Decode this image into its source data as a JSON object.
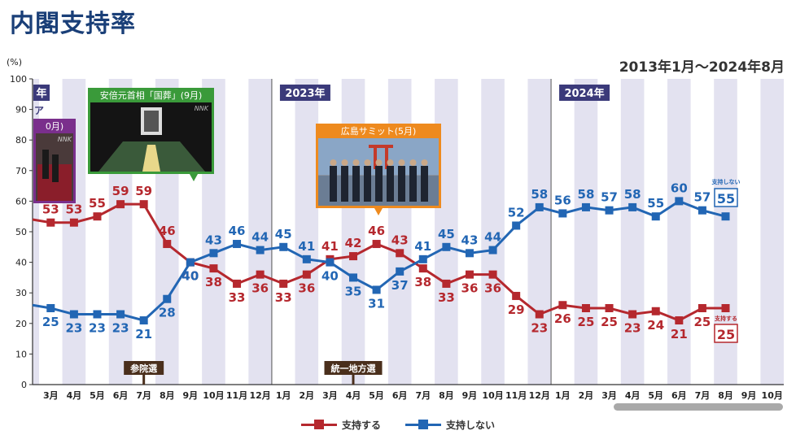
{
  "header": {
    "title": "内閣支持率",
    "range": "2013年1月〜2024年8月"
  },
  "chart_data": {
    "type": "line",
    "ylabel": "(%)",
    "ylim": [
      0,
      100
    ],
    "yticks": [
      0,
      10,
      20,
      30,
      40,
      50,
      60,
      70,
      80,
      90,
      100
    ],
    "categories": [
      "3月",
      "4月",
      "5月",
      "6月",
      "7月",
      "8月",
      "9月",
      "10月",
      "11月",
      "12月",
      "1月",
      "2月",
      "3月",
      "4月",
      "5月",
      "6月",
      "7月",
      "8月",
      "9月",
      "10月",
      "11月",
      "12月",
      "1月",
      "2月",
      "3月",
      "4月",
      "5月",
      "6月",
      "7月",
      "8月",
      "9月",
      "10月"
    ],
    "grid": "alternating month bands",
    "series": [
      {
        "name": "支持する",
        "color": "#b5282e",
        "values": [
          53,
          53,
          55,
          59,
          59,
          46,
          40,
          38,
          33,
          36,
          33,
          36,
          41,
          42,
          46,
          43,
          38,
          33,
          36,
          36,
          29,
          23,
          26,
          25,
          25,
          23,
          24,
          21,
          25,
          25,
          null,
          null
        ]
      },
      {
        "name": "支持しない",
        "color": "#2266b4",
        "values": [
          25,
          23,
          23,
          23,
          21,
          28,
          40,
          43,
          46,
          44,
          45,
          41,
          40,
          35,
          31,
          37,
          41,
          45,
          43,
          44,
          52,
          58,
          56,
          58,
          57,
          58,
          55,
          60,
          57,
          55,
          null,
          null
        ]
      }
    ],
    "series_edge": {
      "support_start": 54,
      "nonsupport_start": 26
    },
    "year_labels": [
      {
        "text": "年",
        "col": -1
      },
      {
        "text": "2023年",
        "col": 10
      },
      {
        "text": "2024年",
        "col": 22
      }
    ],
    "events": [
      {
        "text": "参院選",
        "col": 4
      },
      {
        "text": "統一地方選",
        "col": 13
      }
    ],
    "callouts": [
      {
        "text": "安倍元首相「国葬」(9月)",
        "border": "#3a9a3a",
        "watermark": "NNK"
      },
      {
        "text": "広島サミット(5月)",
        "border": "#ee8a1e"
      },
      {
        "text": "0月)",
        "border": "#7a2f8c",
        "watermark": "NNK"
      }
    ],
    "partial_label": "ア",
    "end_labels": [
      {
        "text": "支持しない",
        "value": "55",
        "color": "#2266b4"
      },
      {
        "text": "支持する",
        "value": "25",
        "color": "#b5282e"
      }
    ]
  },
  "legend": [
    {
      "label": "支持する",
      "color": "#b5282e"
    },
    {
      "label": "支持しない",
      "color": "#2266b4"
    }
  ]
}
